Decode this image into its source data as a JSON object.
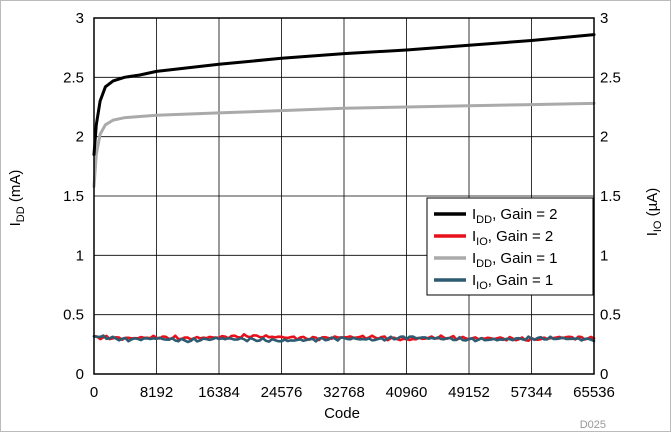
{
  "chart_data": {
    "type": "line",
    "xlabel": "Code",
    "ylabel_left": {
      "main": "I",
      "sub": "DD",
      "unit": " (mA)"
    },
    "ylabel_right": {
      "main": "I",
      "sub": "IO",
      "unit": " (µA)"
    },
    "xlim": [
      0,
      65536
    ],
    "ylim": [
      0,
      3
    ],
    "x_ticks": [
      "0",
      "8192",
      "16384",
      "24576",
      "32768",
      "40960",
      "49152",
      "57344",
      "65536"
    ],
    "y_ticks_left": [
      "0",
      "0.5",
      "1",
      "1.5",
      "2",
      "2.5",
      "3"
    ],
    "y_ticks_right": [
      "0",
      "0.5",
      "1",
      "1.5",
      "2",
      "2.5",
      "3"
    ],
    "grid": true,
    "legend_position": "right-middle",
    "figure_id": "D025",
    "series": [
      {
        "legend_main": "I",
        "legend_sub": "DD",
        "legend_rest": ", Gain = 2",
        "color": "#000000",
        "x": [
          0,
          300,
          800,
          1500,
          2500,
          4000,
          6000,
          8192,
          16384,
          24576,
          32768,
          40960,
          49152,
          57344,
          65536
        ],
        "y": [
          1.85,
          2.1,
          2.3,
          2.42,
          2.47,
          2.5,
          2.52,
          2.55,
          2.61,
          2.66,
          2.7,
          2.73,
          2.77,
          2.81,
          2.86
        ]
      },
      {
        "legend_main": "I",
        "legend_sub": "IO",
        "legend_rest": ", Gain = 2",
        "color": "#e8101a",
        "x": [
          0,
          4096,
          8192,
          12288,
          16384,
          20480,
          24576,
          28672,
          32768,
          36864,
          40960,
          45056,
          49152,
          53248,
          57344,
          61440,
          65536
        ],
        "y": [
          0.31,
          0.3,
          0.31,
          0.3,
          0.31,
          0.32,
          0.31,
          0.3,
          0.31,
          0.31,
          0.29,
          0.31,
          0.3,
          0.3,
          0.29,
          0.31,
          0.3
        ]
      },
      {
        "legend_main": "I",
        "legend_sub": "DD",
        "legend_rest": ", Gain = 1",
        "color": "#aaaaaa",
        "x": [
          0,
          300,
          800,
          1500,
          2500,
          4000,
          6000,
          8192,
          16384,
          24576,
          32768,
          40960,
          49152,
          57344,
          65536
        ],
        "y": [
          1.58,
          1.85,
          2.02,
          2.1,
          2.14,
          2.16,
          2.17,
          2.18,
          2.2,
          2.22,
          2.24,
          2.25,
          2.26,
          2.27,
          2.28
        ]
      },
      {
        "legend_main": "I",
        "legend_sub": "IO",
        "legend_rest": ", Gain = 1",
        "color": "#2d5c72",
        "x": [
          0,
          4096,
          8192,
          12288,
          16384,
          20480,
          24576,
          28672,
          32768,
          36864,
          40960,
          45056,
          49152,
          53248,
          57344,
          61440,
          65536
        ],
        "y": [
          0.32,
          0.29,
          0.3,
          0.28,
          0.3,
          0.29,
          0.28,
          0.29,
          0.3,
          0.29,
          0.31,
          0.3,
          0.29,
          0.29,
          0.3,
          0.3,
          0.29
        ]
      }
    ]
  }
}
